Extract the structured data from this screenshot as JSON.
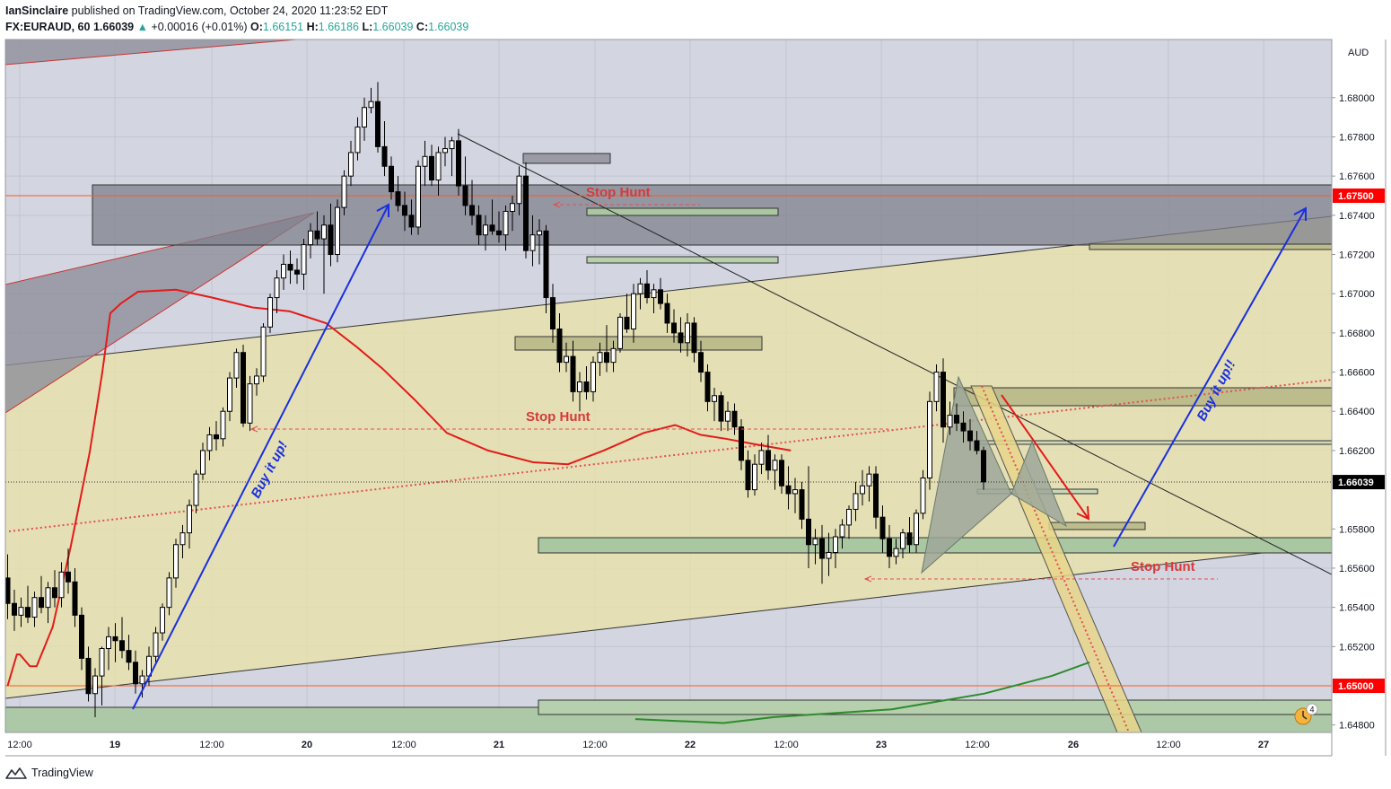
{
  "header": {
    "publisher": "IanSinclaire",
    "published_text": "published on TradingView.com, October 24, 2020 11:23:52 EDT",
    "symbol": "FX:EURAUD, 60",
    "last": "1.66039",
    "change": "+0.00016 (+0.01%)",
    "o_label": "O:",
    "o_value": "1.66151",
    "h_label": "H:",
    "h_value": "1.66186",
    "l_label": "L:",
    "l_value": "1.66039",
    "c_label": "C:",
    "c_value": "1.66039"
  },
  "footer": {
    "brand": "TradingView",
    "logo_icon": "tradingview-logo-icon"
  },
  "colors": {
    "bull": "#ffffff",
    "bear": "#000000",
    "ema_fast": "#e31b1b",
    "ema_slow": "#2e8b2e",
    "arrow_blue": "#1a2fe0",
    "annot_red": "#d63a3a",
    "last_price_bg": "#000000",
    "level_bg": "#ff0000"
  },
  "chart_data": {
    "type": "candlestick",
    "currency_label": "AUD",
    "x_tick_labels": [
      "12:00",
      "19",
      "12:00",
      "20",
      "12:00",
      "21",
      "12:00",
      "22",
      "12:00",
      "23",
      "12:00",
      "26",
      "12:00",
      "27"
    ],
    "y_ticks": [
      1.648,
      1.652,
      1.654,
      1.656,
      1.658,
      1.662,
      1.664,
      1.666,
      1.668,
      1.67,
      1.672,
      1.674,
      1.676,
      1.678,
      1.68
    ],
    "ylim": [
      1.6475,
      1.6835
    ],
    "price_labels": [
      {
        "value": 1.675,
        "text": "1.67500",
        "kind": "level"
      },
      {
        "value": 1.66039,
        "text": "1.66039",
        "kind": "last"
      },
      {
        "value": 1.65,
        "text": "1.65000",
        "kind": "level"
      }
    ],
    "candles": [
      [
        1.6555,
        1.6567,
        1.6534,
        1.6542
      ],
      [
        1.6542,
        1.6549,
        1.6528,
        1.6536
      ],
      [
        1.6536,
        1.6545,
        1.653,
        1.654
      ],
      [
        1.654,
        1.6551,
        1.6532,
        1.6535
      ],
      [
        1.6535,
        1.6548,
        1.653,
        1.6545
      ],
      [
        1.6545,
        1.6556,
        1.6537,
        1.654
      ],
      [
        1.654,
        1.6553,
        1.6532,
        1.655
      ],
      [
        1.655,
        1.6559,
        1.654,
        1.6545
      ],
      [
        1.6545,
        1.6563,
        1.654,
        1.6558
      ],
      [
        1.6558,
        1.657,
        1.6547,
        1.6553
      ],
      [
        1.6553,
        1.656,
        1.653,
        1.6536
      ],
      [
        1.6536,
        1.654,
        1.6508,
        1.6514
      ],
      [
        1.6514,
        1.652,
        1.6492,
        1.6496
      ],
      [
        1.6496,
        1.6509,
        1.6484,
        1.6505
      ],
      [
        1.6505,
        1.652,
        1.649,
        1.6519
      ],
      [
        1.6519,
        1.653,
        1.6508,
        1.6525
      ],
      [
        1.6525,
        1.6532,
        1.6512,
        1.6523
      ],
      [
        1.6523,
        1.6535,
        1.6514,
        1.6518
      ],
      [
        1.6518,
        1.6526,
        1.6508,
        1.6512
      ],
      [
        1.6512,
        1.6518,
        1.6496,
        1.6501
      ],
      [
        1.6501,
        1.6508,
        1.6494,
        1.6505
      ],
      [
        1.6505,
        1.652,
        1.65,
        1.6515
      ],
      [
        1.6515,
        1.653,
        1.6512,
        1.6527
      ],
      [
        1.6527,
        1.6542,
        1.6523,
        1.654
      ],
      [
        1.654,
        1.6558,
        1.6536,
        1.6555
      ],
      [
        1.6555,
        1.6575,
        1.655,
        1.6572
      ],
      [
        1.6572,
        1.6582,
        1.6565,
        1.6578
      ],
      [
        1.6578,
        1.6595,
        1.657,
        1.6592
      ],
      [
        1.6592,
        1.661,
        1.6588,
        1.6608
      ],
      [
        1.6608,
        1.6624,
        1.6605,
        1.662
      ],
      [
        1.662,
        1.6632,
        1.6615,
        1.6628
      ],
      [
        1.6628,
        1.6635,
        1.662,
        1.6626
      ],
      [
        1.6626,
        1.6642,
        1.6622,
        1.664
      ],
      [
        1.664,
        1.666,
        1.6635,
        1.6657
      ],
      [
        1.6657,
        1.6672,
        1.6652,
        1.667
      ],
      [
        1.667,
        1.6674,
        1.6632,
        1.6634
      ],
      [
        1.6634,
        1.6658,
        1.663,
        1.6654
      ],
      [
        1.6654,
        1.6662,
        1.6648,
        1.6658
      ],
      [
        1.6658,
        1.6685,
        1.6655,
        1.6683
      ],
      [
        1.6683,
        1.67,
        1.668,
        1.6698
      ],
      [
        1.6698,
        1.6712,
        1.669,
        1.6708
      ],
      [
        1.6708,
        1.672,
        1.6702,
        1.6715
      ],
      [
        1.6715,
        1.6722,
        1.6705,
        1.6712
      ],
      [
        1.6712,
        1.6718,
        1.6705,
        1.671
      ],
      [
        1.671,
        1.6728,
        1.6702,
        1.6725
      ],
      [
        1.6725,
        1.6736,
        1.6718,
        1.6732
      ],
      [
        1.6732,
        1.6742,
        1.6725,
        1.6728
      ],
      [
        1.6728,
        1.674,
        1.67,
        1.6735
      ],
      [
        1.6735,
        1.6746,
        1.6714,
        1.672
      ],
      [
        1.672,
        1.6748,
        1.6716,
        1.6744
      ],
      [
        1.6744,
        1.6763,
        1.674,
        1.676
      ],
      [
        1.676,
        1.6778,
        1.6755,
        1.6772
      ],
      [
        1.6772,
        1.679,
        1.6768,
        1.6785
      ],
      [
        1.6785,
        1.68,
        1.6778,
        1.6795
      ],
      [
        1.6795,
        1.6805,
        1.6792,
        1.6798
      ],
      [
        1.6798,
        1.6808,
        1.6772,
        1.6775
      ],
      [
        1.6775,
        1.6788,
        1.676,
        1.6765
      ],
      [
        1.6765,
        1.677,
        1.6748,
        1.6752
      ],
      [
        1.6752,
        1.676,
        1.6742,
        1.6745
      ],
      [
        1.6745,
        1.6752,
        1.6732,
        1.674
      ],
      [
        1.674,
        1.6748,
        1.673,
        1.6734
      ],
      [
        1.6734,
        1.6768,
        1.673,
        1.6765
      ],
      [
        1.6765,
        1.6778,
        1.6755,
        1.677
      ],
      [
        1.677,
        1.6776,
        1.6755,
        1.6758
      ],
      [
        1.6758,
        1.6775,
        1.675,
        1.6772
      ],
      [
        1.6772,
        1.678,
        1.6765,
        1.6774
      ],
      [
        1.6774,
        1.678,
        1.676,
        1.6778
      ],
      [
        1.6778,
        1.6784,
        1.675,
        1.6755
      ],
      [
        1.6755,
        1.677,
        1.674,
        1.6745
      ],
      [
        1.6745,
        1.6758,
        1.6735,
        1.674
      ],
      [
        1.674,
        1.6745,
        1.6725,
        1.673
      ],
      [
        1.673,
        1.674,
        1.6722,
        1.6735
      ],
      [
        1.6735,
        1.6748,
        1.673,
        1.6732
      ],
      [
        1.6732,
        1.6742,
        1.6726,
        1.673
      ],
      [
        1.673,
        1.6745,
        1.6722,
        1.6742
      ],
      [
        1.6742,
        1.675,
        1.6732,
        1.6746
      ],
      [
        1.6746,
        1.6765,
        1.674,
        1.676
      ],
      [
        1.676,
        1.6767,
        1.6718,
        1.6722
      ],
      [
        1.6722,
        1.674,
        1.6714,
        1.673
      ],
      [
        1.673,
        1.6738,
        1.6715,
        1.6732
      ],
      [
        1.6732,
        1.6735,
        1.669,
        1.6698
      ],
      [
        1.6698,
        1.6705,
        1.6675,
        1.6682
      ],
      [
        1.6682,
        1.669,
        1.666,
        1.6665
      ],
      [
        1.6665,
        1.6675,
        1.666,
        1.6668
      ],
      [
        1.6668,
        1.6676,
        1.6645,
        1.665
      ],
      [
        1.665,
        1.666,
        1.664,
        1.6655
      ],
      [
        1.6655,
        1.6663,
        1.6646,
        1.665
      ],
      [
        1.665,
        1.6668,
        1.6645,
        1.6665
      ],
      [
        1.6665,
        1.6675,
        1.6658,
        1.667
      ],
      [
        1.667,
        1.6684,
        1.666,
        1.6665
      ],
      [
        1.6665,
        1.6676,
        1.666,
        1.6672
      ],
      [
        1.6672,
        1.669,
        1.667,
        1.6688
      ],
      [
        1.6688,
        1.67,
        1.668,
        1.6682
      ],
      [
        1.6682,
        1.6705,
        1.6675,
        1.67
      ],
      [
        1.67,
        1.6708,
        1.6692,
        1.6705
      ],
      [
        1.6705,
        1.6712,
        1.6695,
        1.6698
      ],
      [
        1.6698,
        1.6705,
        1.669,
        1.6702
      ],
      [
        1.6702,
        1.6708,
        1.6692,
        1.6695
      ],
      [
        1.6695,
        1.67,
        1.668,
        1.6685
      ],
      [
        1.6685,
        1.6692,
        1.6675,
        1.668
      ],
      [
        1.668,
        1.6688,
        1.667,
        1.6675
      ],
      [
        1.6675,
        1.669,
        1.6668,
        1.6685
      ],
      [
        1.6685,
        1.6688,
        1.6665,
        1.667
      ],
      [
        1.667,
        1.6676,
        1.6655,
        1.666
      ],
      [
        1.666,
        1.6664,
        1.664,
        1.6645
      ],
      [
        1.6645,
        1.6652,
        1.6635,
        1.6648
      ],
      [
        1.6648,
        1.665,
        1.663,
        1.6635
      ],
      [
        1.6635,
        1.6645,
        1.663,
        1.664
      ],
      [
        1.664,
        1.6644,
        1.6628,
        1.6632
      ],
      [
        1.6632,
        1.6636,
        1.661,
        1.6615
      ],
      [
        1.6615,
        1.662,
        1.6596,
        1.66
      ],
      [
        1.66,
        1.6618,
        1.6597,
        1.6613
      ],
      [
        1.6613,
        1.6624,
        1.6608,
        1.662
      ],
      [
        1.662,
        1.6628,
        1.6605,
        1.661
      ],
      [
        1.661,
        1.6618,
        1.66,
        1.6615
      ],
      [
        1.6615,
        1.6618,
        1.6598,
        1.6602
      ],
      [
        1.6602,
        1.6612,
        1.659,
        1.6598
      ],
      [
        1.6598,
        1.6606,
        1.6588,
        1.66
      ],
      [
        1.66,
        1.6604,
        1.658,
        1.6585
      ],
      [
        1.6585,
        1.6612,
        1.656,
        1.6572
      ],
      [
        1.6572,
        1.658,
        1.6562,
        1.6575
      ],
      [
        1.6575,
        1.6582,
        1.6552,
        1.6565
      ],
      [
        1.6565,
        1.6578,
        1.6556,
        1.6568
      ],
      [
        1.6568,
        1.658,
        1.656,
        1.6576
      ],
      [
        1.6576,
        1.6585,
        1.657,
        1.6582
      ],
      [
        1.6582,
        1.6592,
        1.6575,
        1.659
      ],
      [
        1.659,
        1.6604,
        1.6584,
        1.6598
      ],
      [
        1.6598,
        1.661,
        1.6592,
        1.6602
      ],
      [
        1.6602,
        1.6612,
        1.6594,
        1.6608
      ],
      [
        1.6608,
        1.6612,
        1.658,
        1.6586
      ],
      [
        1.6586,
        1.6592,
        1.6568,
        1.6575
      ],
      [
        1.6575,
        1.6582,
        1.656,
        1.6566
      ],
      [
        1.6566,
        1.6575,
        1.6562,
        1.657
      ],
      [
        1.657,
        1.658,
        1.6565,
        1.6578
      ],
      [
        1.6578,
        1.6586,
        1.6568,
        1.6572
      ],
      [
        1.6572,
        1.659,
        1.6568,
        1.6588
      ],
      [
        1.6588,
        1.661,
        1.6585,
        1.6606
      ],
      [
        1.6606,
        1.665,
        1.66,
        1.6645
      ],
      [
        1.6645,
        1.6664,
        1.664,
        1.666
      ],
      [
        1.666,
        1.6667,
        1.6624,
        1.6632
      ],
      [
        1.6632,
        1.6645,
        1.6628,
        1.6638
      ],
      [
        1.6638,
        1.6644,
        1.663,
        1.6634
      ],
      [
        1.6634,
        1.664,
        1.6624,
        1.663
      ],
      [
        1.663,
        1.6636,
        1.662,
        1.6625
      ],
      [
        1.6625,
        1.663,
        1.6618,
        1.662
      ],
      [
        1.662,
        1.6622,
        1.66,
        1.6604
      ]
    ],
    "ema_fast": [
      [
        1.6508,
        1.65
      ],
      [
        1.653,
        1.6516
      ],
      [
        1.6537,
        1.6516
      ],
      [
        1.6561,
        1.651
      ],
      [
        1.6577,
        1.651
      ],
      [
        1.6615,
        1.653
      ],
      [
        1.6658,
        1.6571
      ],
      [
        1.6703,
        1.6619
      ],
      [
        1.6733,
        1.666
      ],
      [
        1.6752,
        1.669
      ],
      [
        1.6777,
        1.6695
      ],
      [
        1.6818,
        1.6701
      ],
      [
        1.6908,
        1.6702
      ],
      [
        1.6995,
        1.6698
      ],
      [
        1.709,
        1.6693
      ],
      [
        1.7179,
        1.6691
      ],
      [
        1.7265,
        1.6685
      ],
      [
        1.7337,
        1.6673
      ],
      [
        1.7398,
        1.6662
      ],
      [
        1.7475,
        1.6646
      ],
      [
        1.7552,
        1.6629
      ],
      [
        1.765,
        1.662
      ],
      [
        1.7757,
        1.6614
      ],
      [
        1.784,
        1.6613
      ],
      [
        1.7925,
        1.662
      ],
      [
        1.802,
        1.6629
      ],
      [
        1.8095,
        1.6633
      ],
      [
        1.8155,
        1.6628
      ],
      [
        1.8215,
        1.6626
      ],
      [
        1.829,
        1.6623
      ],
      [
        1.837,
        1.662
      ]
    ],
    "ema_slow": [
      [
        1.8,
        1.6483
      ],
      [
        1.821,
        1.6481
      ],
      [
        1.833,
        1.6484
      ],
      [
        1.861,
        1.6488
      ],
      [
        1.883,
        1.6496
      ],
      [
        1.899,
        1.6505
      ],
      [
        1.908,
        1.6512
      ]
    ],
    "annotations": [
      {
        "text": "Stop Hunt",
        "color": "#d63a3a"
      },
      {
        "text": "Stop Hunt",
        "color": "#d63a3a"
      },
      {
        "text": "Stop Hunt",
        "color": "#d63a3a"
      },
      {
        "text": "Buy it up!",
        "color": "#1a2fe0"
      },
      {
        "text": "Buy it up!!",
        "color": "#1a2fe0"
      }
    ],
    "alert_badge": "4",
    "alert_icon": "alert-clock-icon",
    "grid": true
  }
}
